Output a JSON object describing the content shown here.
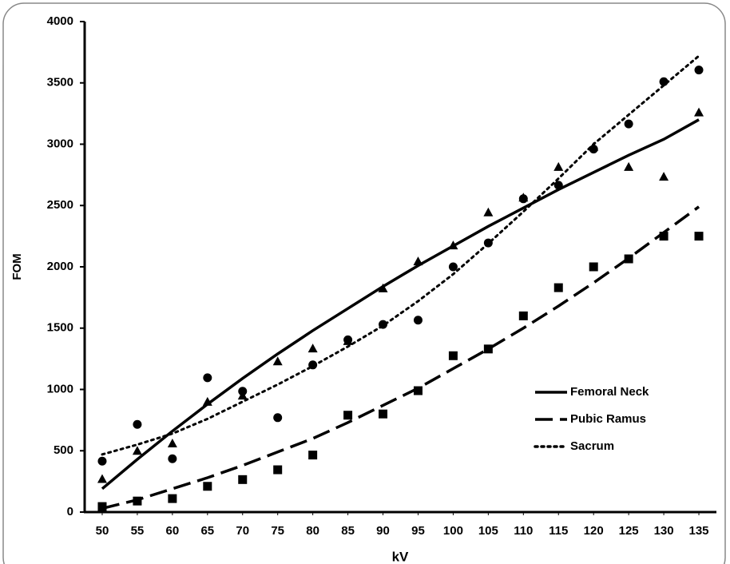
{
  "chart_data": {
    "type": "scatter",
    "x_label": "kV",
    "y_label": "FOM",
    "x": [
      50,
      55,
      60,
      65,
      70,
      75,
      80,
      85,
      90,
      95,
      100,
      105,
      110,
      115,
      120,
      125,
      130,
      135
    ],
    "xlim": [
      47.5,
      137.5
    ],
    "xticks": [
      50,
      55,
      60,
      65,
      70,
      75,
      80,
      85,
      90,
      95,
      100,
      105,
      110,
      115,
      120,
      125,
      130,
      135
    ],
    "ylim": [
      0,
      4000
    ],
    "yticks": [
      0,
      500,
      1000,
      1500,
      2000,
      2500,
      3000,
      3500,
      4000
    ],
    "legend": "lower right",
    "series": [
      {
        "name": "Femoral Neck",
        "color": "#000000",
        "marker": "triangle",
        "line_style": "solid",
        "values": [
          270,
          500,
          560,
          900,
          950,
          1230,
          1335,
          1395,
          1825,
          2045,
          2175,
          2445,
          2565,
          2815,
          2980,
          2815,
          2735,
          3260
        ],
        "fit_values": [
          190,
          430,
          660,
          880,
          1090,
          1290,
          1480,
          1660,
          1840,
          2010,
          2170,
          2330,
          2480,
          2630,
          2770,
          2910,
          3040,
          3200
        ]
      },
      {
        "name": "Pubic Ramus",
        "color": "#000000",
        "marker": "square",
        "line_style": "dashed",
        "values": [
          45,
          90,
          110,
          210,
          265,
          345,
          465,
          790,
          800,
          990,
          1275,
          1330,
          1600,
          1830,
          2000,
          2065,
          2250,
          2250
        ],
        "fit_values": [
          30,
          100,
          190,
          280,
          380,
          490,
          600,
          730,
          870,
          1010,
          1170,
          1330,
          1500,
          1680,
          1870,
          2070,
          2280,
          2490
        ]
      },
      {
        "name": "Sacrum",
        "color": "#000000",
        "marker": "circle",
        "line_style": "dotted",
        "values": [
          415,
          715,
          435,
          1095,
          985,
          770,
          1200,
          1405,
          1530,
          1565,
          2000,
          2195,
          2555,
          2665,
          2960,
          3165,
          3510,
          3605
        ],
        "fit_values": [
          470,
          550,
          640,
          760,
          900,
          1040,
          1190,
          1350,
          1520,
          1720,
          1940,
          2190,
          2450,
          2720,
          3000,
          3240,
          3480,
          3720
        ]
      }
    ]
  }
}
